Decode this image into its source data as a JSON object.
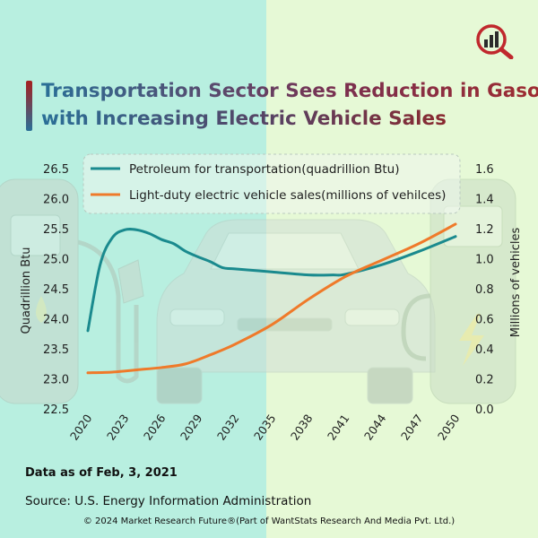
{
  "title_lines": [
    "Transportation Sector Sees Reduction in Gasoline",
    "with Increasing Electric Vehicle Sales"
  ],
  "note": "Data as of Feb, 3, 2021",
  "source": "Source: U.S. Energy Information Administration",
  "copyright": "© 2024 Market Research Future®(Part of WantStats Research And Media Pvt. Ltd.)",
  "colors": {
    "petroleum": "#1a8a8e",
    "ev_sales": "#ef7a2a",
    "left_bg": "#b8efe0",
    "right_bg": "#e6f9d6",
    "logo_red": "#c0282d"
  },
  "icons": [
    "analytics-logo-icon",
    "fuel-pump-icon",
    "car-icon",
    "ev-charger-icon"
  ],
  "chart_data": {
    "type": "line",
    "title": "Transportation Sector Sees Reduction in Gasoline with Increasing Electric Vehicle Sales",
    "x_ticks": [
      "2020",
      "2023",
      "2026",
      "2029",
      "2032",
      "2035",
      "2038",
      "2041",
      "2044",
      "2047",
      "2050"
    ],
    "y_left": {
      "label": "Quadrillion Btu",
      "ticks": [
        "22.5",
        "23.0",
        "23.5",
        "24.0",
        "24.5",
        "25.0",
        "25.5",
        "26.0",
        "26.5"
      ],
      "range": [
        22.5,
        26.5
      ]
    },
    "y_right": {
      "label": "Millions of vehicles",
      "ticks": [
        "0.0",
        "0.2",
        "0.4",
        "0.6",
        "0.8",
        "1.0",
        "1.2",
        "1.4",
        "1.6"
      ],
      "range": [
        0,
        1.6
      ]
    },
    "legend_position": "top",
    "series": [
      {
        "name": "Petroleum for transportation(quadrillion Btu)",
        "axis": "left",
        "points": [
          [
            2020,
            23.8
          ],
          [
            2021,
            24.9
          ],
          [
            2022,
            25.35
          ],
          [
            2023,
            25.48
          ],
          [
            2024,
            25.48
          ],
          [
            2025,
            25.42
          ],
          [
            2026,
            25.32
          ],
          [
            2027,
            25.25
          ],
          [
            2028,
            25.12
          ],
          [
            2029,
            25.03
          ],
          [
            2030,
            24.95
          ],
          [
            2031,
            24.85
          ],
          [
            2032,
            24.83
          ],
          [
            2035,
            24.78
          ],
          [
            2038,
            24.73
          ],
          [
            2040,
            24.73
          ],
          [
            2041,
            24.74
          ],
          [
            2044,
            24.9
          ],
          [
            2047,
            25.12
          ],
          [
            2050,
            25.37
          ]
        ]
      },
      {
        "name": "Light-duty electric vehicle sales(millions of vehilces)",
        "axis": "right",
        "points": [
          [
            2020,
            0.24
          ],
          [
            2022,
            0.245
          ],
          [
            2024,
            0.26
          ],
          [
            2026,
            0.275
          ],
          [
            2028,
            0.3
          ],
          [
            2030,
            0.36
          ],
          [
            2032,
            0.43
          ],
          [
            2035,
            0.56
          ],
          [
            2038,
            0.73
          ],
          [
            2041,
            0.88
          ],
          [
            2044,
            0.99
          ],
          [
            2047,
            1.1
          ],
          [
            2050,
            1.23
          ]
        ]
      }
    ]
  }
}
